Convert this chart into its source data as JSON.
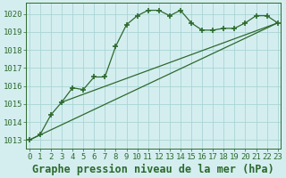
{
  "title": "Graphe pression niveau de la mer (hPa)",
  "background_color": "#d4eef0",
  "plot_bg_color": "#d4eef0",
  "line_color": "#2d6a2d",
  "grid_color": "#aad4d4",
  "hours": [
    0,
    1,
    2,
    3,
    4,
    5,
    6,
    7,
    8,
    9,
    10,
    11,
    12,
    13,
    14,
    15,
    16,
    17,
    18,
    19,
    20,
    21,
    22,
    23
  ],
  "pressure": [
    1013.0,
    1013.3,
    1014.4,
    1015.1,
    1015.9,
    1015.8,
    1016.5,
    1016.5,
    1018.2,
    1019.4,
    1019.9,
    1020.2,
    1020.2,
    1019.9,
    1020.2,
    1019.5,
    1019.1,
    1019.1,
    1019.2,
    1019.2,
    1019.5,
    1019.9,
    1019.9,
    1019.5
  ],
  "trend1_x": [
    0,
    23
  ],
  "trend1_y": [
    1013.0,
    1019.5
  ],
  "trend2_x": [
    3,
    23
  ],
  "trend2_y": [
    1015.1,
    1019.5
  ],
  "ylim_min": 1012.5,
  "ylim_max": 1020.6,
  "xlim_min": -0.3,
  "xlim_max": 23.3,
  "yticks": [
    1013,
    1014,
    1015,
    1016,
    1017,
    1018,
    1019,
    1020
  ],
  "xticks": [
    0,
    1,
    2,
    3,
    4,
    5,
    6,
    7,
    8,
    9,
    10,
    11,
    12,
    13,
    14,
    15,
    16,
    17,
    18,
    19,
    20,
    21,
    22,
    23
  ],
  "title_fontsize": 8.5,
  "tick_fontsize": 6.5
}
